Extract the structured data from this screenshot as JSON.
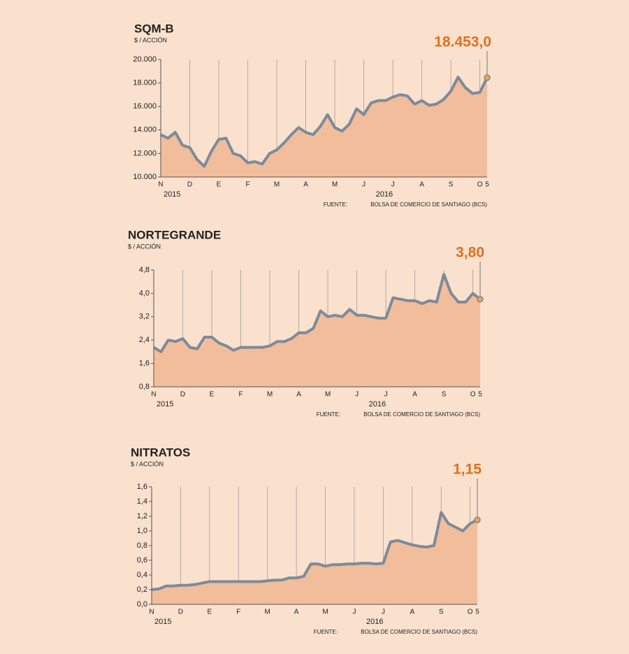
{
  "chart_data": [
    {
      "type": "area",
      "title": "SQM-B",
      "subtitle": "$ / ACCIÓN",
      "categories": [
        "N",
        null,
        null,
        null,
        "D",
        null,
        null,
        null,
        "E",
        null,
        null,
        null,
        "F",
        null,
        null,
        null,
        "M",
        null,
        null,
        null,
        "A",
        null,
        null,
        null,
        "M",
        null,
        null,
        null,
        "J",
        null,
        null,
        null,
        "J",
        null,
        null,
        null,
        "A",
        null,
        null,
        null,
        "S",
        null,
        null,
        null,
        "O",
        "5"
      ],
      "years": [
        "2015",
        "2016"
      ],
      "values": [
        13600,
        13300,
        13800,
        12700,
        12500,
        11500,
        10900,
        12200,
        13200,
        13300,
        12000,
        11800,
        11200,
        11300,
        11100,
        12000,
        12300,
        12900,
        13600,
        14200,
        13800,
        13600,
        14300,
        15300,
        14200,
        13900,
        14500,
        15800,
        15300,
        16300,
        16500,
        16500,
        16800,
        17000,
        16900,
        16200,
        16500,
        16100,
        16200,
        16600,
        17300,
        18500,
        17600,
        17100,
        17200,
        18453
      ],
      "value_labels": [
        null,
        null,
        null,
        null,
        null,
        null,
        null,
        null,
        null,
        null,
        null,
        null,
        null,
        null,
        null,
        null,
        null,
        null,
        null,
        null,
        null,
        null,
        null,
        null,
        null,
        null,
        null,
        null,
        null,
        null,
        null,
        null,
        null,
        null,
        null,
        null,
        null,
        null,
        null,
        null,
        null,
        null,
        null,
        null,
        null,
        "18.453,0"
      ],
      "ylim": [
        10000,
        20000
      ],
      "yticks": [
        {
          "value": 10000,
          "label": "10.000"
        },
        {
          "value": 12000,
          "label": "12.000"
        },
        {
          "value": 14000,
          "label": "14.000"
        },
        {
          "value": 16000,
          "label": "16.000"
        },
        {
          "value": 18000,
          "label": "18.000"
        },
        {
          "value": 20000,
          "label": "20.000"
        }
      ],
      "color": "#7d8b99",
      "fill": "#f2bd9b",
      "source_label": "FUENTE:",
      "source": "BOLSA DE COMERCIO DE SANTIAGO (BCS)"
    },
    {
      "type": "area",
      "title": "NORTEGRANDE",
      "subtitle": "$ / ACCIÓN",
      "categories": [
        "N",
        null,
        null,
        null,
        "D",
        null,
        null,
        null,
        "E",
        null,
        null,
        null,
        "F",
        null,
        null,
        null,
        "M",
        null,
        null,
        null,
        "A",
        null,
        null,
        null,
        "M",
        null,
        null,
        null,
        "J",
        null,
        null,
        null,
        "J",
        null,
        null,
        null,
        "A",
        null,
        null,
        null,
        "S",
        null,
        null,
        null,
        "O",
        "5"
      ],
      "years": [
        "2015",
        "2016"
      ],
      "values": [
        2.15,
        2.0,
        2.4,
        2.35,
        2.45,
        2.15,
        2.1,
        2.5,
        2.5,
        2.3,
        2.2,
        2.05,
        2.15,
        2.15,
        2.15,
        2.15,
        2.2,
        2.35,
        2.35,
        2.45,
        2.65,
        2.65,
        2.8,
        3.4,
        3.2,
        3.25,
        3.2,
        3.45,
        3.25,
        3.25,
        3.2,
        3.15,
        3.15,
        3.85,
        3.8,
        3.75,
        3.75,
        3.65,
        3.75,
        3.7,
        4.65,
        4.0,
        3.7,
        3.7,
        4.0,
        3.8
      ],
      "value_labels": [
        null,
        null,
        null,
        null,
        null,
        null,
        null,
        null,
        null,
        null,
        null,
        null,
        null,
        null,
        null,
        null,
        null,
        null,
        null,
        null,
        null,
        null,
        null,
        null,
        null,
        null,
        null,
        null,
        null,
        null,
        null,
        null,
        null,
        null,
        null,
        null,
        null,
        null,
        null,
        null,
        null,
        null,
        null,
        null,
        null,
        "3,80"
      ],
      "ylim": [
        0.8,
        4.8
      ],
      "yticks": [
        {
          "value": 0.8,
          "label": "0,8"
        },
        {
          "value": 1.6,
          "label": "1,6"
        },
        {
          "value": 2.4,
          "label": "2,4"
        },
        {
          "value": 3.2,
          "label": "3,2"
        },
        {
          "value": 4.0,
          "label": "4,0"
        },
        {
          "value": 4.8,
          "label": "4,8"
        }
      ],
      "color": "#7d8b99",
      "fill": "#f2bd9b",
      "source_label": "FUENTE:",
      "source": "BOLSA DE COMERCIO DE SANTIAGO (BCS)"
    },
    {
      "type": "area",
      "title": "NITRATOS",
      "subtitle": "$ / ACCIÓN",
      "categories": [
        "N",
        null,
        null,
        null,
        "D",
        null,
        null,
        null,
        "E",
        null,
        null,
        null,
        "F",
        null,
        null,
        null,
        "M",
        null,
        null,
        null,
        "A",
        null,
        null,
        null,
        "M",
        null,
        null,
        null,
        "J",
        null,
        null,
        null,
        "J",
        null,
        null,
        null,
        "A",
        null,
        null,
        null,
        "S",
        null,
        null,
        null,
        "O",
        "5"
      ],
      "years": [
        "2015",
        "2016"
      ],
      "values": [
        0.2,
        0.21,
        0.25,
        0.25,
        0.26,
        0.26,
        0.27,
        0.29,
        0.31,
        0.31,
        0.31,
        0.31,
        0.31,
        0.31,
        0.31,
        0.31,
        0.32,
        0.33,
        0.33,
        0.36,
        0.36,
        0.38,
        0.55,
        0.55,
        0.52,
        0.54,
        0.54,
        0.55,
        0.55,
        0.56,
        0.56,
        0.55,
        0.56,
        0.85,
        0.87,
        0.84,
        0.81,
        0.79,
        0.78,
        0.8,
        1.25,
        1.1,
        1.05,
        1.0,
        1.1,
        1.15
      ],
      "value_labels": [
        null,
        null,
        null,
        null,
        null,
        null,
        null,
        null,
        null,
        null,
        null,
        null,
        null,
        null,
        null,
        null,
        null,
        null,
        null,
        null,
        null,
        null,
        null,
        null,
        null,
        null,
        null,
        null,
        null,
        null,
        null,
        null,
        null,
        null,
        null,
        null,
        null,
        null,
        null,
        null,
        null,
        null,
        null,
        null,
        null,
        "1,15"
      ],
      "ylim": [
        0,
        1.6
      ],
      "yticks": [
        {
          "value": 0,
          "label": "0,0"
        },
        {
          "value": 0.2,
          "label": "0,2"
        },
        {
          "value": 0.4,
          "label": "0,4"
        },
        {
          "value": 0.6,
          "label": "0,6"
        },
        {
          "value": 0.8,
          "label": "0,8"
        },
        {
          "value": 1.0,
          "label": "1,0"
        },
        {
          "value": 1.2,
          "label": "1,2"
        },
        {
          "value": 1.4,
          "label": "1,4"
        },
        {
          "value": 1.6,
          "label": "1,6"
        }
      ],
      "color": "#7d8b99",
      "fill": "#f2bd9b",
      "source_label": "FUENTE:",
      "source": "BOLSA DE COMERCIO DE SANTIAGO (BCS)"
    }
  ]
}
